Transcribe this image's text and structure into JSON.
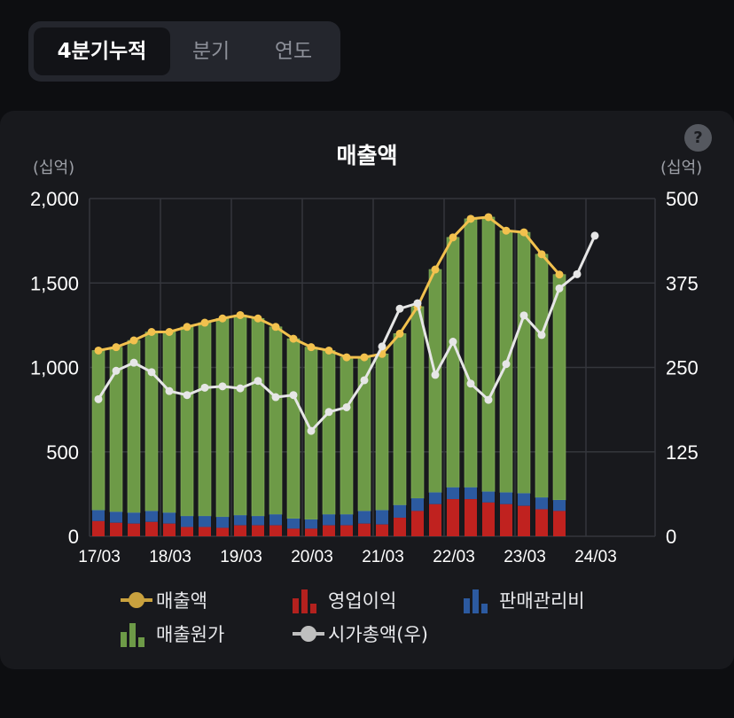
{
  "tabs": [
    {
      "label": "4분기누적",
      "active": true
    },
    {
      "label": "분기",
      "active": false
    },
    {
      "label": "연도",
      "active": false
    }
  ],
  "help_label": "?",
  "chart_data": {
    "type": "bar",
    "title": "매출액",
    "unit_left": "(십억)",
    "unit_right": "(십억)",
    "xlabels": [
      "17/03",
      "18/03",
      "19/03",
      "20/03",
      "21/03",
      "22/03",
      "23/03",
      "24/03"
    ],
    "yticks_left": [
      "2,000",
      "1,500",
      "1,000",
      "500",
      "0"
    ],
    "yticks_right": [
      "500",
      "375",
      "250",
      "125",
      "0"
    ],
    "ylim_left": [
      0,
      2000
    ],
    "ylim_right": [
      0,
      500
    ],
    "legend": [
      "매출액",
      "영업이익",
      "판매관리비",
      "매출원가",
      "시가총액(우)"
    ],
    "colors": {
      "revenue": "#f2c14e",
      "operating_profit": "#c0221f",
      "sga": "#2c5aa0",
      "cogs": "#6d9a47",
      "market_cap": "#e6e6e6"
    },
    "revenue": [
      1100,
      1120,
      1160,
      1210,
      1210,
      1240,
      1265,
      1290,
      1310,
      1290,
      1240,
      1170,
      1120,
      1100,
      1060,
      1060,
      1080,
      1200,
      1360,
      1580,
      1770,
      1880,
      1890,
      1810,
      1800,
      1670,
      1550
    ],
    "operating_profit": [
      90,
      80,
      75,
      85,
      75,
      55,
      55,
      50,
      65,
      65,
      65,
      45,
      45,
      65,
      65,
      75,
      70,
      110,
      150,
      190,
      220,
      220,
      200,
      190,
      180,
      160,
      150
    ],
    "sga": [
      65,
      65,
      65,
      65,
      65,
      65,
      65,
      65,
      60,
      55,
      65,
      60,
      55,
      65,
      65,
      75,
      85,
      75,
      75,
      70,
      70,
      70,
      65,
      70,
      75,
      70,
      65
    ],
    "market_cap": [
      203,
      245,
      257,
      243,
      215,
      209,
      220,
      222,
      219,
      230,
      206,
      209,
      156,
      184,
      191,
      231,
      281,
      337,
      345,
      239,
      288,
      226,
      202,
      255,
      327,
      298,
      367,
      388,
      445
    ]
  }
}
